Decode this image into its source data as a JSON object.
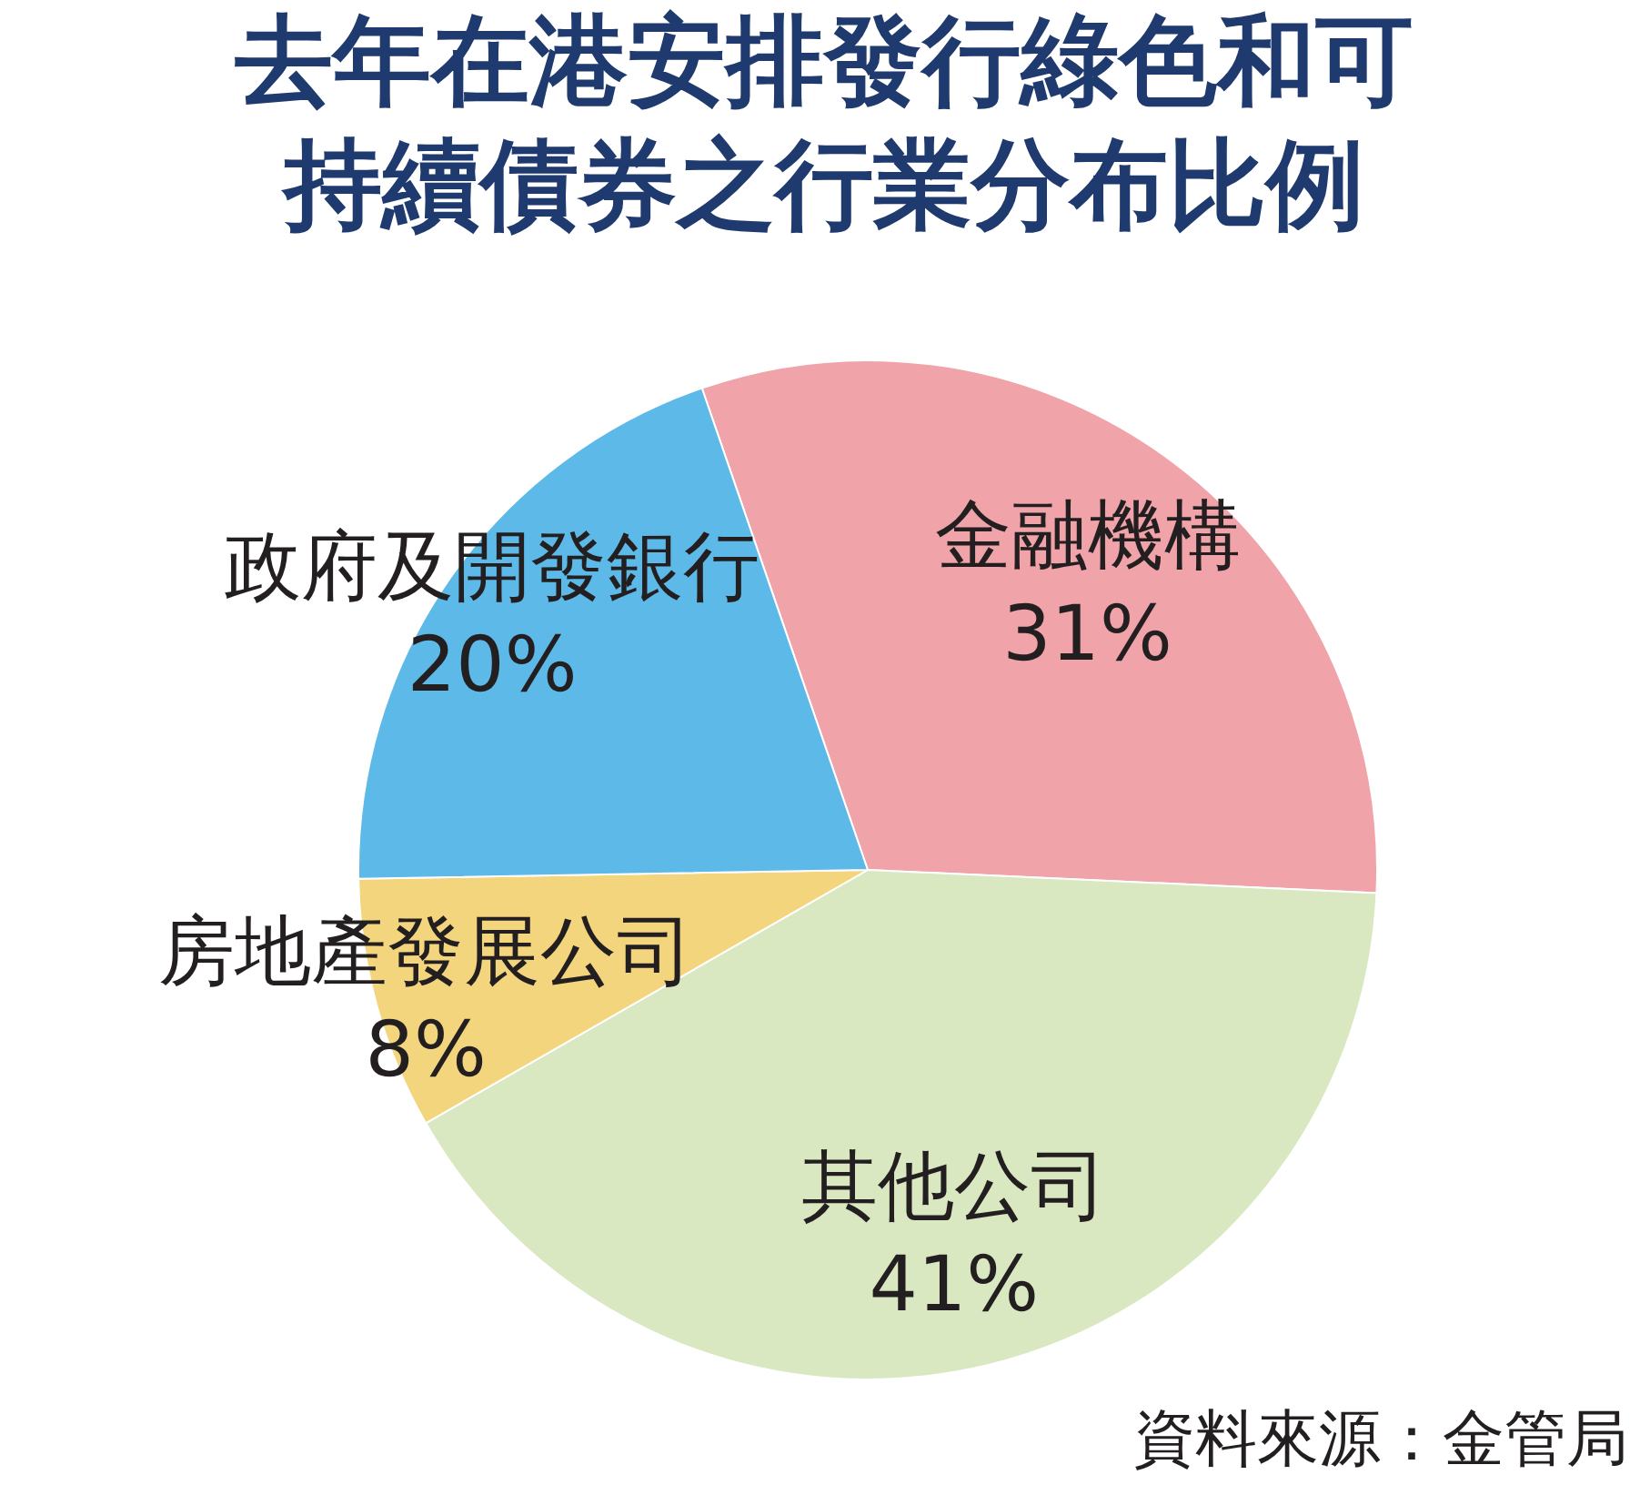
{
  "chart_data": {
    "type": "pie",
    "title": "去年在港安排發行綠色和可持續債券之行業分布比例",
    "categories": [
      "金融機構",
      "其他公司",
      "房地產發展公司",
      "政府及開發銀行"
    ],
    "values": [
      31,
      41,
      8,
      20
    ],
    "colors": [
      "#f0a3a8",
      "#d9e8c0",
      "#f3d57e",
      "#5db9e8"
    ],
    "value_labels": [
      "31%",
      "41%",
      "8%",
      "20%"
    ],
    "annotations": [
      "資料來源：金管局"
    ]
  }
}
